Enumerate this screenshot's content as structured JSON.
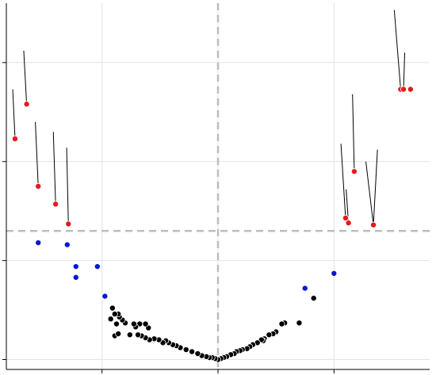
{
  "chart_data": {
    "type": "scatter",
    "title": "",
    "xlabel": "",
    "ylabel": "",
    "xlim": [
      -3.65,
      3.65
    ],
    "ylim": [
      -0.1,
      3.6
    ],
    "grid": true,
    "x_gridlines": [
      -2,
      0,
      2
    ],
    "y_gridlines": [
      0,
      1,
      2,
      3
    ],
    "reference_lines": {
      "vertical_x": 0,
      "horizontal_y": 1.3
    },
    "colors": {
      "significant": "#e41a1c",
      "near_threshold": "#0a16d6",
      "not_significant": "#000000",
      "label_line": "#000000",
      "grid": "#e3e3e3",
      "reference": "#bdbdbd",
      "axes": "#000000"
    },
    "series": [
      {
        "color": "#e41a1c",
        "points": [
          {
            "x": -3.5,
            "y": 2.23,
            "lx": -3.54,
            "ly": 2.73
          },
          {
            "x": -3.3,
            "y": 2.58,
            "lx": -3.35,
            "ly": 3.12
          },
          {
            "x": -3.1,
            "y": 1.75,
            "lx": -3.15,
            "ly": 2.4
          },
          {
            "x": -2.8,
            "y": 1.57,
            "lx": -2.84,
            "ly": 2.3
          },
          {
            "x": -2.58,
            "y": 1.37,
            "lx": -2.61,
            "ly": 2.14
          },
          {
            "x": 2.2,
            "y": 1.43,
            "lx": 2.12,
            "ly": 2.18
          },
          {
            "x": 2.25,
            "y": 1.38,
            "lx": 2.21,
            "ly": 1.72
          },
          {
            "x": 2.35,
            "y": 1.9,
            "lx": 2.32,
            "ly": 2.68
          },
          {
            "x": 2.68,
            "y": 1.36,
            "lx": 2.55,
            "ly": 2.0
          },
          {
            "x": 2.68,
            "y": 1.36,
            "lx": 2.75,
            "ly": 2.12
          },
          {
            "x": 3.15,
            "y": 2.73,
            "lx": 3.04,
            "ly": 3.53
          },
          {
            "x": 3.2,
            "y": 2.73,
            "lx": 3.22,
            "ly": 3.1
          },
          {
            "x": 3.32,
            "y": 2.73
          }
        ]
      },
      {
        "color": "#0a16d6",
        "points": [
          {
            "x": -3.1,
            "y": 1.18
          },
          {
            "x": -2.6,
            "y": 1.16
          },
          {
            "x": -2.45,
            "y": 0.94
          },
          {
            "x": -2.45,
            "y": 0.83
          },
          {
            "x": -2.08,
            "y": 0.94
          },
          {
            "x": -1.95,
            "y": 0.64
          },
          {
            "x": 1.5,
            "y": 0.72
          },
          {
            "x": 2.0,
            "y": 0.87
          }
        ]
      },
      {
        "color": "#000000",
        "points": [
          {
            "x": 1.65,
            "y": 0.62
          },
          {
            "x": 1.4,
            "y": 0.37
          },
          {
            "x": 1.15,
            "y": 0.37
          },
          {
            "x": 1.1,
            "y": 0.36
          },
          {
            "x": 1.0,
            "y": 0.28
          },
          {
            "x": 0.95,
            "y": 0.26
          },
          {
            "x": 0.88,
            "y": 0.25
          },
          {
            "x": 0.8,
            "y": 0.21
          },
          {
            "x": 0.78,
            "y": 0.19
          },
          {
            "x": 0.75,
            "y": 0.2
          },
          {
            "x": 0.68,
            "y": 0.17
          },
          {
            "x": 0.6,
            "y": 0.15
          },
          {
            "x": 0.55,
            "y": 0.13
          },
          {
            "x": 0.5,
            "y": 0.11
          },
          {
            "x": 0.42,
            "y": 0.1
          },
          {
            "x": 0.38,
            "y": 0.09
          },
          {
            "x": 0.32,
            "y": 0.08
          },
          {
            "x": 0.28,
            "y": 0.06
          },
          {
            "x": 0.22,
            "y": 0.05
          },
          {
            "x": 0.15,
            "y": 0.03
          },
          {
            "x": 0.1,
            "y": 0.02
          },
          {
            "x": 0.05,
            "y": 0.01
          },
          {
            "x": 0.0,
            "y": 0.0
          },
          {
            "x": -0.05,
            "y": 0.01
          },
          {
            "x": -0.1,
            "y": 0.02
          },
          {
            "x": -0.15,
            "y": 0.02
          },
          {
            "x": -0.2,
            "y": 0.03
          },
          {
            "x": -0.28,
            "y": 0.04
          },
          {
            "x": -0.35,
            "y": 0.06
          },
          {
            "x": -0.45,
            "y": 0.08
          },
          {
            "x": -0.55,
            "y": 0.1
          },
          {
            "x": -0.65,
            "y": 0.12
          },
          {
            "x": -0.72,
            "y": 0.14
          },
          {
            "x": -0.78,
            "y": 0.15
          },
          {
            "x": -0.85,
            "y": 0.17
          },
          {
            "x": -0.9,
            "y": 0.19
          },
          {
            "x": -0.95,
            "y": 0.17
          },
          {
            "x": -1.02,
            "y": 0.2
          },
          {
            "x": -1.1,
            "y": 0.21
          },
          {
            "x": -1.18,
            "y": 0.2
          },
          {
            "x": -1.25,
            "y": 0.22
          },
          {
            "x": -1.32,
            "y": 0.24
          },
          {
            "x": -1.38,
            "y": 0.25
          },
          {
            "x": -1.2,
            "y": 0.32
          },
          {
            "x": -1.25,
            "y": 0.36
          },
          {
            "x": -1.35,
            "y": 0.36
          },
          {
            "x": -1.42,
            "y": 0.33
          },
          {
            "x": -1.45,
            "y": 0.36
          },
          {
            "x": -1.52,
            "y": 0.25
          },
          {
            "x": -1.6,
            "y": 0.37
          },
          {
            "x": -1.65,
            "y": 0.4
          },
          {
            "x": -1.7,
            "y": 0.43
          },
          {
            "x": -1.72,
            "y": 0.46
          },
          {
            "x": -1.75,
            "y": 0.36
          },
          {
            "x": -1.78,
            "y": 0.46
          },
          {
            "x": -1.78,
            "y": 0.24
          },
          {
            "x": -1.82,
            "y": 0.52
          },
          {
            "x": -1.85,
            "y": 0.41
          },
          {
            "x": -1.72,
            "y": 0.26
          }
        ]
      }
    ]
  }
}
